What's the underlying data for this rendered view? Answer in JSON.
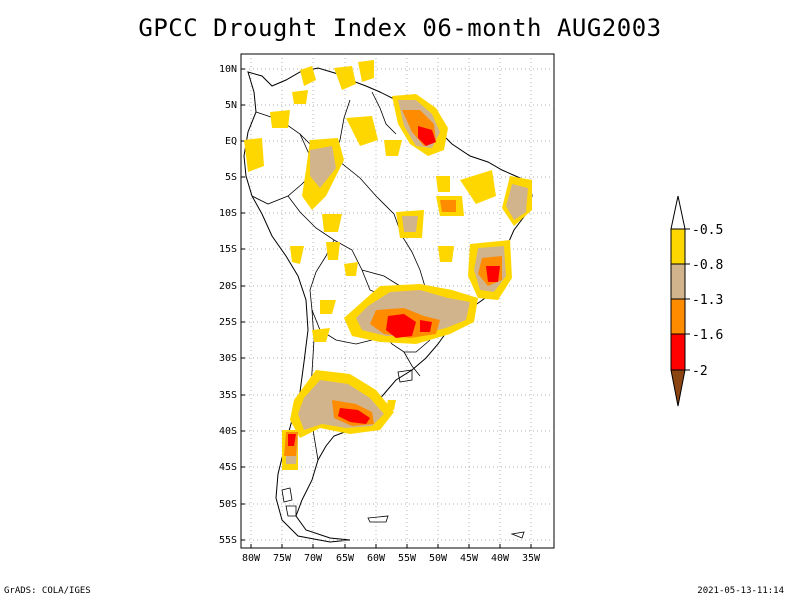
{
  "title": "GPCC Drought Index 06-month AUG2003",
  "lat_labels": [
    "10N",
    "5N",
    "EQ",
    "5S",
    "10S",
    "15S",
    "20S",
    "25S",
    "30S",
    "35S",
    "40S",
    "45S",
    "50S",
    "55S"
  ],
  "lon_labels": [
    "80W",
    "75W",
    "70W",
    "65W",
    "60W",
    "55W",
    "50W",
    "45W",
    "40W",
    "35W"
  ],
  "legend": {
    "levels": [
      "-0.5",
      "-0.8",
      "-1.3",
      "-1.6",
      "-2"
    ],
    "colors": [
      "#ffffff",
      "#ffd700",
      "#d2b48c",
      "#ff8c00",
      "#ff0000",
      "#8b4513"
    ]
  },
  "colors": {
    "yellow": "#ffd700",
    "tan": "#d2b48c",
    "orange": "#ff8c00",
    "red": "#ff0000"
  },
  "footer": {
    "credit": "GrADS: COLA/IGES",
    "timestamp": "2021-05-13-11:14"
  }
}
